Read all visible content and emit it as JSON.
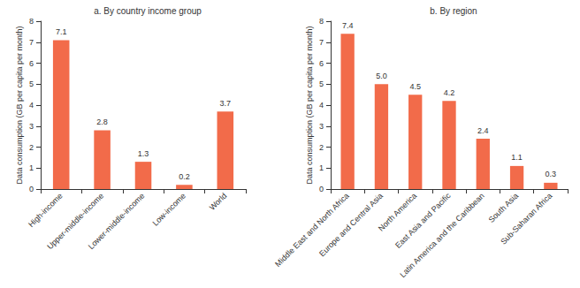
{
  "chart_data": [
    {
      "type": "bar",
      "title": "a. By country income group",
      "y_label": "Data consumption (GB per capita per month)",
      "categories": [
        "High-income",
        "Upper-middle-income",
        "Lower-middle-income",
        "Low-income",
        "World"
      ],
      "values": [
        7.1,
        2.8,
        1.3,
        0.2,
        3.7
      ],
      "color": "#f26b4a",
      "ylim": [
        0,
        8
      ],
      "yticks": [
        0,
        1,
        2,
        3,
        4,
        5,
        6,
        7,
        8
      ],
      "grid": false,
      "data_labels": true
    },
    {
      "type": "bar",
      "title": "b. By region",
      "y_label": "Data consumption (GB per capita per month)",
      "categories": [
        "Middle East and North Africa",
        "Europe and Central Asia",
        "North America",
        "East Asia and Pacific",
        "Latin America and the Caribbean",
        "South Asia",
        "Sub-Saharan Africa"
      ],
      "values": [
        7.4,
        5.0,
        4.5,
        4.2,
        2.4,
        1.1,
        0.3
      ],
      "value_labels": [
        "7.4",
        "5.0",
        "4.5",
        "4.2",
        "2.4",
        "1.1",
        "0.3"
      ],
      "color": "#f26b4a",
      "ylim": [
        0,
        8
      ],
      "yticks": [
        0,
        1,
        2,
        3,
        4,
        5,
        6,
        7,
        8
      ],
      "grid": false,
      "data_labels": true
    }
  ]
}
